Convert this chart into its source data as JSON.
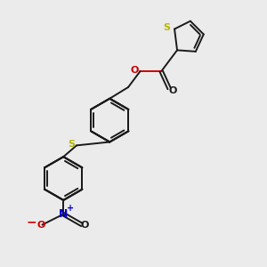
{
  "bg_color": "#ebebeb",
  "bond_color": "#1a1a1a",
  "S_color": "#b8b800",
  "O_color": "#cc0000",
  "N_color": "#0000cc",
  "lw": 1.4,
  "figsize": [
    3.0,
    3.0
  ],
  "dpi": 100,
  "xlim": [
    0,
    10
  ],
  "ylim": [
    0,
    10
  ]
}
